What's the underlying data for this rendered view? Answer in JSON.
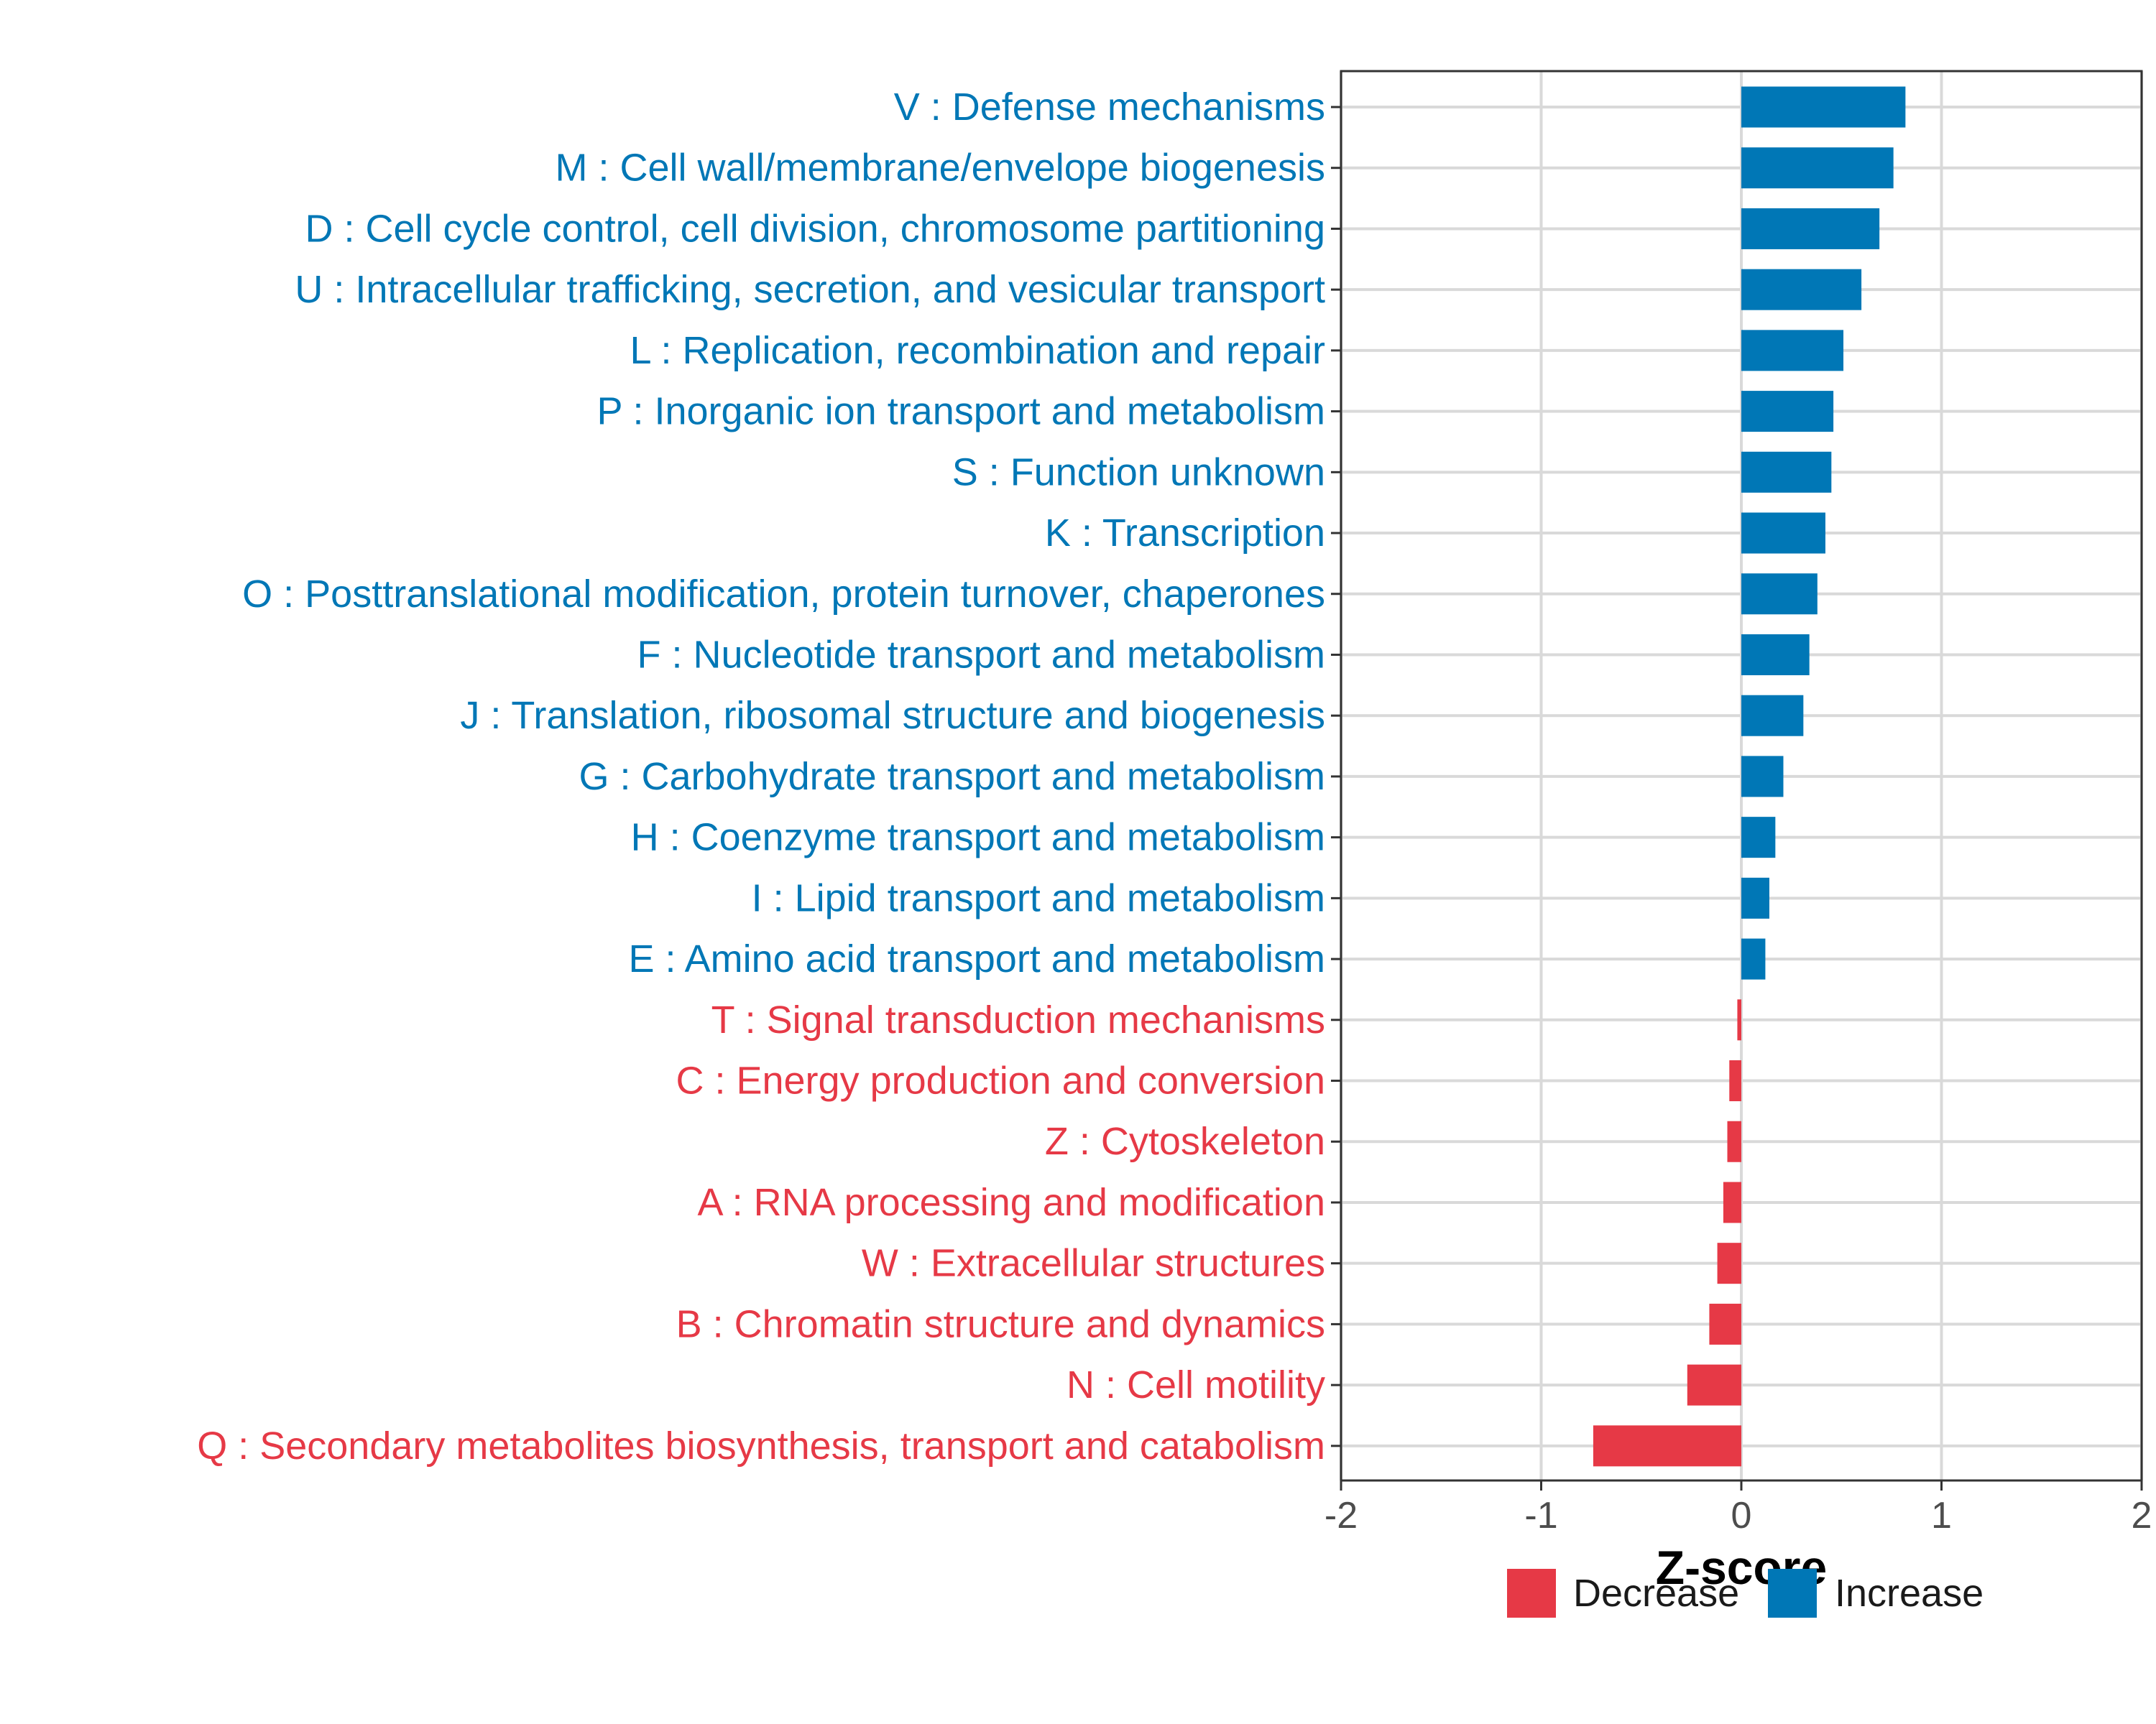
{
  "chart_data": {
    "type": "bar",
    "orientation": "horizontal",
    "xlabel": "Z-score",
    "xlim": [
      -2,
      2
    ],
    "xticks": [
      -2,
      -1,
      0,
      1,
      2
    ],
    "tick_labels": [
      "-2",
      "-1",
      "0",
      "1",
      "2"
    ],
    "grid": true,
    "categories": [
      "V : Defense mechanisms",
      "M : Cell wall/membrane/envelope biogenesis",
      "D : Cell cycle control, cell division, chromosome partitioning",
      "U : Intracellular trafficking, secretion, and vesicular transport",
      "L : Replication, recombination and repair",
      "P : Inorganic ion transport and metabolism",
      "S : Function unknown",
      "K : Transcription",
      "O : Posttranslational modification, protein turnover, chaperones",
      "F : Nucleotide transport and metabolism",
      "J : Translation, ribosomal structure and biogenesis",
      "G : Carbohydrate transport and metabolism",
      "H : Coenzyme transport and metabolism",
      "I : Lipid transport and metabolism",
      "E : Amino acid transport and metabolism",
      "T : Signal transduction mechanisms",
      "C : Energy production and conversion",
      "Z : Cytoskeleton",
      "A : RNA processing and modification",
      "W : Extracellular structures",
      "B : Chromatin structure and dynamics",
      "N : Cell motility",
      "Q : Secondary metabolites biosynthesis, transport and catabolism"
    ],
    "values": [
      0.82,
      0.76,
      0.69,
      0.6,
      0.51,
      0.46,
      0.45,
      0.42,
      0.38,
      0.34,
      0.31,
      0.21,
      0.17,
      0.14,
      0.12,
      -0.02,
      -0.06,
      -0.07,
      -0.09,
      -0.12,
      -0.16,
      -0.27,
      -0.74
    ],
    "legend": {
      "position": "bottom",
      "entries": [
        {
          "label": "Decrease",
          "color": "#E63946"
        },
        {
          "label": "Increase",
          "color": "#0077B6"
        }
      ]
    },
    "colors": {
      "increase": "#0077B6",
      "decrease": "#E63946"
    }
  }
}
